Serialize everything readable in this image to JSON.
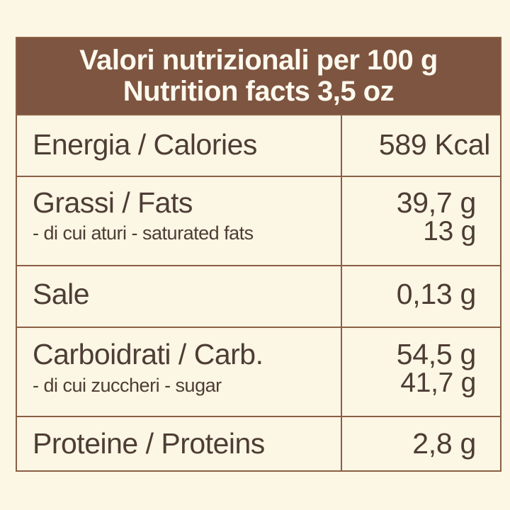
{
  "header": {
    "line1": "Valori nutrizionali per 100 g",
    "line2": "Nutrition facts 3,5 oz"
  },
  "rows": [
    {
      "label": "Energia / Calories",
      "value": "589 Kcal"
    },
    {
      "label": "Grassi / Fats",
      "value": "39,7 g",
      "sub_label": "- di cui aturi - saturated fats",
      "sub_value": "13 g"
    },
    {
      "label": "Sale",
      "value": "0,13 g"
    },
    {
      "label": "Carboidrati / Carb.",
      "value": "54,5 g",
      "sub_label": "- di cui zuccheri - sugar",
      "sub_value": "41,7 g"
    },
    {
      "label": "Proteine / Proteins",
      "value": "2,8 g"
    }
  ],
  "colors": {
    "background": "#fcf6e4",
    "header_background": "#7e5540",
    "header_text": "#fdf9ee",
    "border": "#8a5f46",
    "body_text": "#4d3d35"
  }
}
